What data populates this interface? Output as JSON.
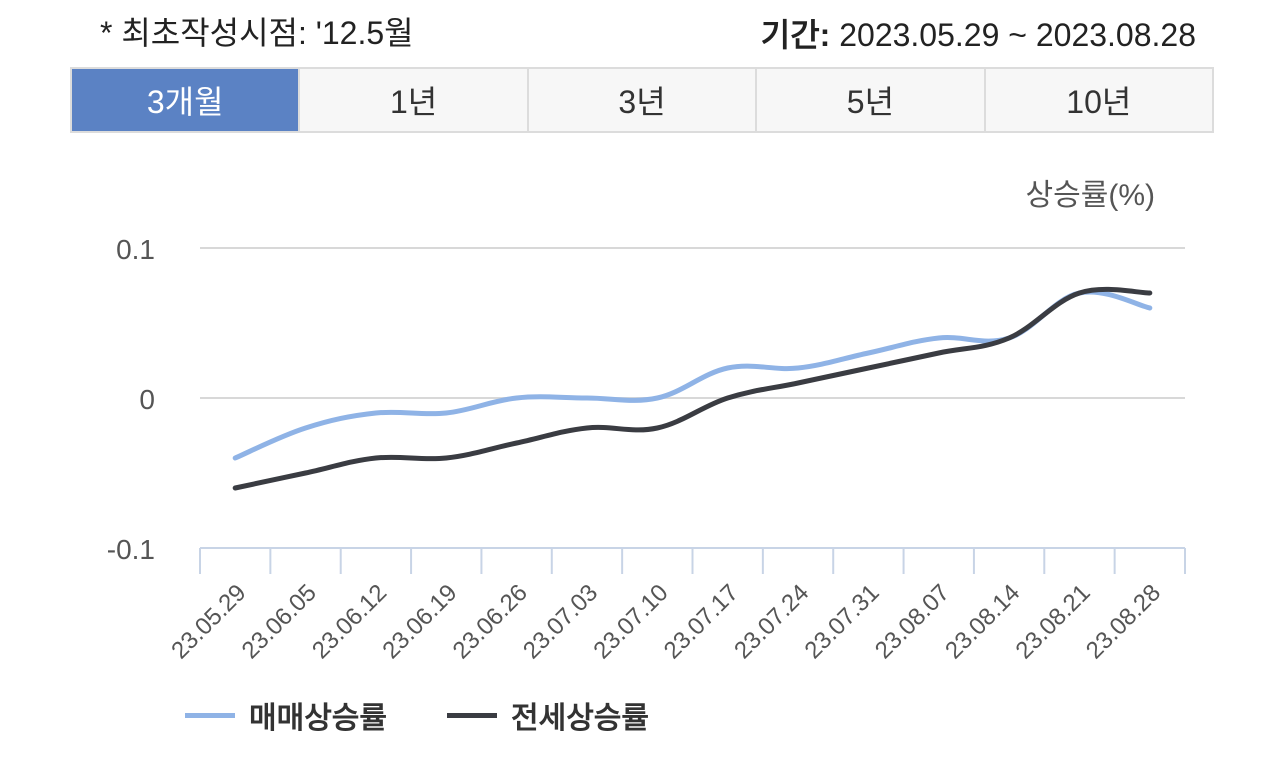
{
  "header": {
    "note": "* 최초작성시점: '12.5월",
    "period_label": "기간:",
    "period_value": "2023.05.29 ~ 2023.08.28"
  },
  "tabs": [
    {
      "label": "3개월",
      "active": true
    },
    {
      "label": "1년",
      "active": false
    },
    {
      "label": "3년",
      "active": false
    },
    {
      "label": "5년",
      "active": false
    },
    {
      "label": "10년",
      "active": false
    }
  ],
  "chart_data": {
    "type": "line",
    "ylabel": "상승률(%)",
    "ylim": [
      -0.1,
      0.1
    ],
    "yticks": [
      "0.1",
      "0",
      "-0.1"
    ],
    "grid": true,
    "legend_position": "bottom-left",
    "x": [
      "23.05.29",
      "23.06.05",
      "23.06.12",
      "23.06.19",
      "23.06.26",
      "23.07.03",
      "23.07.10",
      "23.07.17",
      "23.07.24",
      "23.07.31",
      "23.08.07",
      "23.08.14",
      "23.08.21",
      "23.08.28"
    ],
    "series": [
      {
        "name": "매매상승률",
        "color": "#8fb3e6",
        "values": [
          -0.04,
          -0.02,
          -0.01,
          -0.01,
          0.0,
          0.0,
          0.0,
          0.02,
          0.02,
          0.03,
          0.04,
          0.04,
          0.07,
          0.06
        ]
      },
      {
        "name": "전세상승률",
        "color": "#3a3c42",
        "values": [
          -0.06,
          -0.05,
          -0.04,
          -0.04,
          -0.03,
          -0.02,
          -0.02,
          0.0,
          0.01,
          0.02,
          0.03,
          0.04,
          0.07,
          0.07
        ]
      }
    ]
  }
}
